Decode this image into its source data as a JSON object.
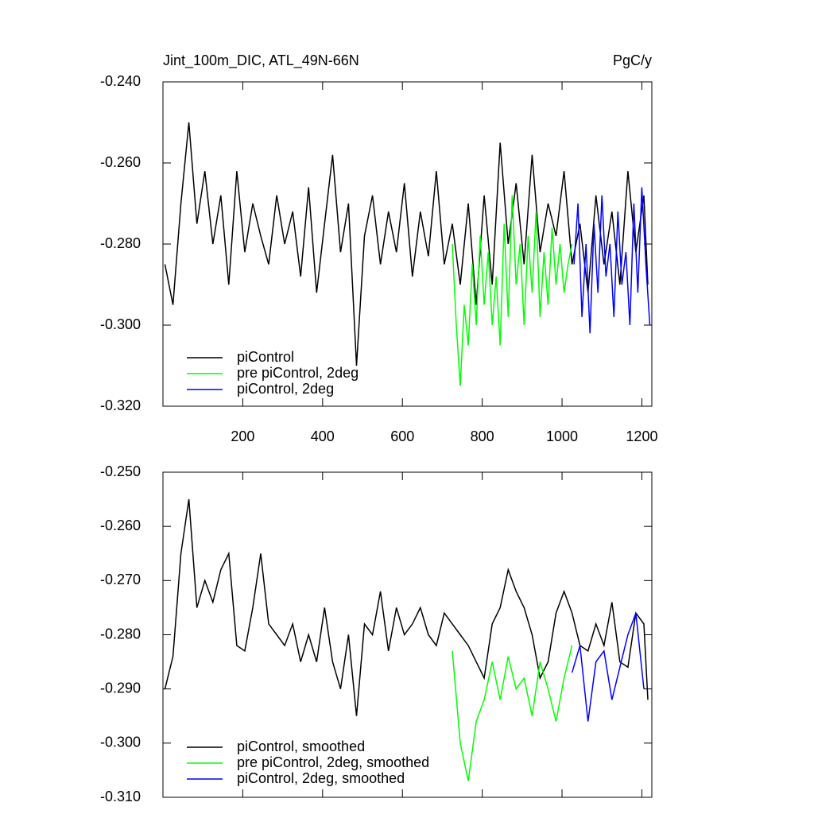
{
  "chart_data": [
    {
      "type": "line",
      "title": "Jint_100m_DIC, ATL_49N-66N",
      "units": "PgC/y",
      "xlim": [
        0,
        1225
      ],
      "xticks": [
        200,
        400,
        600,
        800,
        1000,
        1200
      ],
      "ylim": [
        -0.32,
        -0.24
      ],
      "yticks": [
        {
          "value": -0.24,
          "label": "-0.240"
        },
        {
          "value": -0.26,
          "label": "-0.260"
        },
        {
          "value": -0.28,
          "label": "-0.280"
        },
        {
          "value": -0.3,
          "label": "-0.300"
        },
        {
          "value": -0.32,
          "label": "-0.320"
        }
      ],
      "legend": "lower left",
      "series": [
        {
          "name": "piControl",
          "color": "#000000",
          "x": [
            5,
            25,
            45,
            65,
            85,
            105,
            125,
            145,
            165,
            185,
            205,
            225,
            245,
            265,
            285,
            305,
            325,
            345,
            365,
            385,
            405,
            425,
            445,
            465,
            485,
            505,
            525,
            545,
            565,
            585,
            605,
            625,
            645,
            665,
            685,
            705,
            725,
            745,
            765,
            785,
            805,
            825,
            845,
            865,
            885,
            905,
            925,
            945,
            965,
            985,
            1005,
            1025,
            1045,
            1065,
            1085,
            1105,
            1125,
            1145,
            1165,
            1185,
            1205,
            1215
          ],
          "values": [
            -0.285,
            -0.295,
            -0.27,
            -0.25,
            -0.275,
            -0.262,
            -0.28,
            -0.268,
            -0.29,
            -0.262,
            -0.282,
            -0.27,
            -0.278,
            -0.285,
            -0.268,
            -0.28,
            -0.272,
            -0.288,
            -0.266,
            -0.292,
            -0.275,
            -0.258,
            -0.282,
            -0.27,
            -0.31,
            -0.278,
            -0.268,
            -0.285,
            -0.272,
            -0.282,
            -0.265,
            -0.288,
            -0.272,
            -0.283,
            -0.262,
            -0.285,
            -0.275,
            -0.29,
            -0.27,
            -0.295,
            -0.268,
            -0.29,
            -0.255,
            -0.28,
            -0.265,
            -0.285,
            -0.258,
            -0.282,
            -0.27,
            -0.278,
            -0.262,
            -0.285,
            -0.275,
            -0.292,
            -0.268,
            -0.285,
            -0.272,
            -0.29,
            -0.262,
            -0.282,
            -0.268,
            -0.29
          ]
        },
        {
          "name": "pre piControl, 2deg",
          "color": "#00ff00",
          "x": [
            725,
            735,
            745,
            755,
            765,
            775,
            785,
            795,
            805,
            815,
            825,
            835,
            845,
            855,
            865,
            875,
            885,
            895,
            905,
            915,
            925,
            935,
            945,
            955,
            965,
            975,
            985,
            995,
            1005,
            1015,
            1025
          ],
          "values": [
            -0.28,
            -0.3,
            -0.315,
            -0.295,
            -0.305,
            -0.285,
            -0.3,
            -0.278,
            -0.295,
            -0.282,
            -0.3,
            -0.288,
            -0.305,
            -0.275,
            -0.298,
            -0.268,
            -0.29,
            -0.28,
            -0.3,
            -0.278,
            -0.292,
            -0.272,
            -0.298,
            -0.282,
            -0.295,
            -0.276,
            -0.29,
            -0.28,
            -0.292,
            -0.285,
            -0.28
          ]
        },
        {
          "name": "piControl, 2deg",
          "color": "#0000ff",
          "x": [
            1030,
            1040,
            1050,
            1060,
            1070,
            1080,
            1090,
            1100,
            1110,
            1120,
            1130,
            1140,
            1150,
            1160,
            1170,
            1180,
            1190,
            1200,
            1210,
            1220
          ],
          "values": [
            -0.285,
            -0.27,
            -0.298,
            -0.28,
            -0.302,
            -0.275,
            -0.292,
            -0.268,
            -0.288,
            -0.28,
            -0.298,
            -0.272,
            -0.29,
            -0.282,
            -0.3,
            -0.27,
            -0.292,
            -0.266,
            -0.285,
            -0.3
          ]
        }
      ]
    },
    {
      "type": "line",
      "xlim": [
        0,
        1225
      ],
      "xticks": [
        200,
        400,
        600,
        800,
        1000,
        1200
      ],
      "ylim": [
        -0.31,
        -0.25
      ],
      "yticks": [
        {
          "value": -0.25,
          "label": "-0.250"
        },
        {
          "value": -0.26,
          "label": "-0.260"
        },
        {
          "value": -0.27,
          "label": "-0.270"
        },
        {
          "value": -0.28,
          "label": "-0.280"
        },
        {
          "value": -0.29,
          "label": "-0.290"
        },
        {
          "value": -0.3,
          "label": "-0.300"
        },
        {
          "value": -0.31,
          "label": "-0.310"
        }
      ],
      "legend": "lower left",
      "series": [
        {
          "name": "piControl, smoothed",
          "color": "#000000",
          "x": [
            5,
            25,
            45,
            65,
            85,
            105,
            125,
            145,
            165,
            185,
            205,
            225,
            245,
            265,
            285,
            305,
            325,
            345,
            365,
            385,
            405,
            425,
            445,
            465,
            485,
            505,
            525,
            545,
            565,
            585,
            605,
            625,
            645,
            665,
            685,
            705,
            725,
            745,
            765,
            785,
            805,
            825,
            845,
            865,
            885,
            905,
            925,
            945,
            965,
            985,
            1005,
            1025,
            1045,
            1065,
            1085,
            1105,
            1125,
            1145,
            1165,
            1185,
            1205,
            1215
          ],
          "values": [
            -0.29,
            -0.284,
            -0.265,
            -0.255,
            -0.275,
            -0.27,
            -0.274,
            -0.268,
            -0.265,
            -0.282,
            -0.283,
            -0.275,
            -0.265,
            -0.278,
            -0.28,
            -0.282,
            -0.278,
            -0.285,
            -0.28,
            -0.285,
            -0.275,
            -0.285,
            -0.29,
            -0.28,
            -0.295,
            -0.278,
            -0.28,
            -0.272,
            -0.283,
            -0.275,
            -0.28,
            -0.278,
            -0.275,
            -0.28,
            -0.282,
            -0.276,
            -0.278,
            -0.28,
            -0.282,
            -0.285,
            -0.288,
            -0.278,
            -0.275,
            -0.268,
            -0.272,
            -0.275,
            -0.28,
            -0.288,
            -0.285,
            -0.276,
            -0.272,
            -0.276,
            -0.282,
            -0.283,
            -0.278,
            -0.282,
            -0.274,
            -0.285,
            -0.286,
            -0.276,
            -0.278,
            -0.292
          ]
        },
        {
          "name": "pre piControl, 2deg, smoothed",
          "color": "#00ff00",
          "x": [
            725,
            745,
            765,
            785,
            805,
            825,
            845,
            865,
            885,
            905,
            925,
            945,
            965,
            985,
            1005,
            1025
          ],
          "values": [
            -0.283,
            -0.3,
            -0.307,
            -0.296,
            -0.292,
            -0.285,
            -0.292,
            -0.284,
            -0.29,
            -0.288,
            -0.295,
            -0.285,
            -0.29,
            -0.296,
            -0.288,
            -0.282
          ]
        },
        {
          "name": "piControl, 2deg, smoothed",
          "color": "#0000ff",
          "x": [
            1025,
            1045,
            1065,
            1085,
            1105,
            1125,
            1145,
            1165,
            1185,
            1205
          ],
          "values": [
            -0.287,
            -0.282,
            -0.296,
            -0.285,
            -0.283,
            -0.292,
            -0.286,
            -0.28,
            -0.276,
            -0.29
          ]
        }
      ]
    }
  ]
}
